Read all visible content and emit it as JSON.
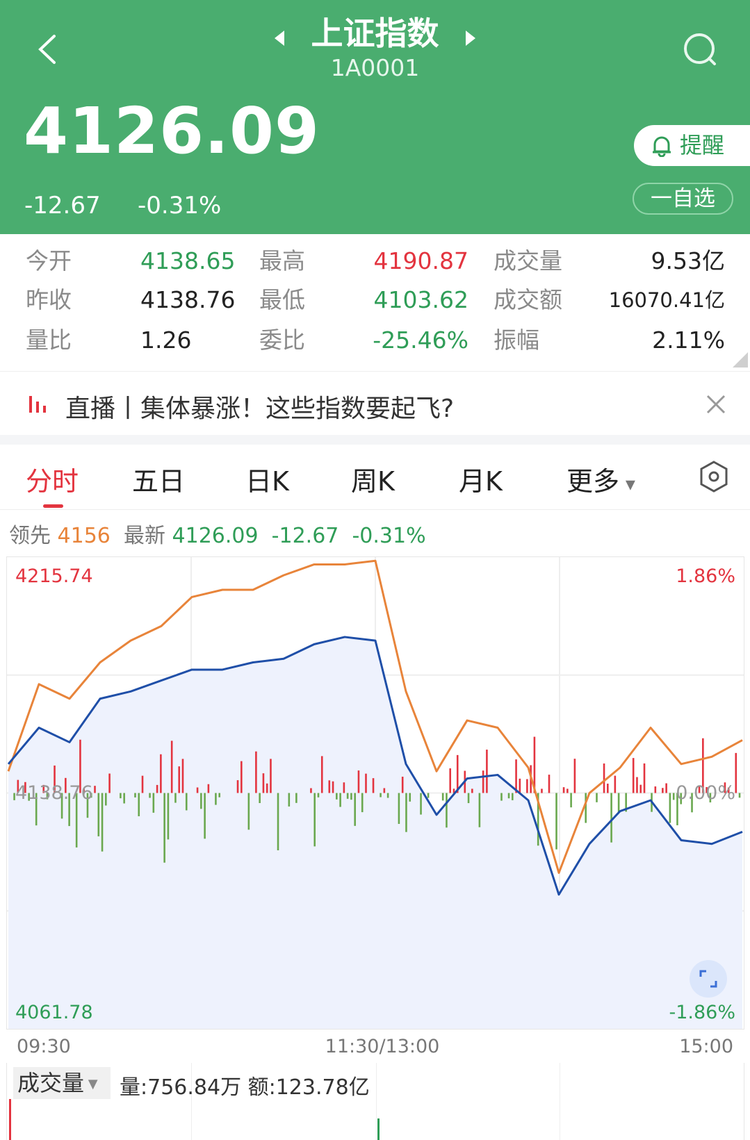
{
  "colors": {
    "header_bg": "#4aad6f",
    "up": "#e3343f",
    "down": "#2f9d57",
    "leading_line": "#e8843a",
    "price_line": "#1f4fa8"
  },
  "header": {
    "back_icon": "chevron-left-icon",
    "title": "上证指数",
    "code": "1A0001",
    "search_icon": "search-icon",
    "price": "4126.09",
    "change": "-12.67",
    "change_pct": "-0.31%",
    "alert_label": "提醒",
    "watchlist_label": "一自选"
  },
  "stats": [
    [
      {
        "label": "今开",
        "value": "4138.65",
        "color": "down"
      },
      {
        "label": "最高",
        "value": "4190.87",
        "color": "up"
      },
      {
        "label": "成交量",
        "value": "9.53亿",
        "color": "plain"
      }
    ],
    [
      {
        "label": "昨收",
        "value": "4138.76",
        "color": "plain"
      },
      {
        "label": "最低",
        "value": "4103.62",
        "color": "down"
      },
      {
        "label": "成交额",
        "value": "16070.41亿",
        "color": "plain"
      }
    ],
    [
      {
        "label": "量比",
        "value": "1.26",
        "color": "plain"
      },
      {
        "label": "委比",
        "value": "-25.46%",
        "color": "down"
      },
      {
        "label": "振幅",
        "value": "2.11%",
        "color": "plain"
      }
    ]
  ],
  "banner": {
    "text": "直播丨集体暴涨！这些指数要起飞?"
  },
  "tabs": [
    {
      "label": "分时",
      "active": true
    },
    {
      "label": "五日"
    },
    {
      "label": "日K"
    },
    {
      "label": "周K"
    },
    {
      "label": "月K"
    },
    {
      "label": "更多"
    }
  ],
  "info": {
    "lead_label": "领先",
    "lead_value": "4156",
    "latest_label": "最新",
    "latest_value": "4126.09",
    "change": "-12.67",
    "change_pct": "-0.31%"
  },
  "chart_data": {
    "type": "line",
    "y_max": "4215.74",
    "y_mid": "4138.76",
    "y_min": "4061.78",
    "pct_max": "1.86%",
    "pct_mid": "0.00%",
    "pct_min": "-1.86%",
    "ylim": [
      4061.78,
      4215.74
    ],
    "x_ticks": [
      "09:30",
      "11:30/13:00",
      "15:00"
    ],
    "times": [
      "09:30",
      "09:40",
      "09:50",
      "10:00",
      "10:10",
      "10:20",
      "10:30",
      "10:40",
      "10:50",
      "11:00",
      "11:10",
      "11:20",
      "11:30",
      "13:10",
      "13:20",
      "13:30",
      "13:40",
      "13:50",
      "14:00",
      "14:10",
      "14:20",
      "14:30",
      "14:40",
      "14:50",
      "15:00"
    ],
    "series": [
      {
        "key": "leading",
        "values": [
          4145.85,
          4174.28,
          4169.54,
          4181.39,
          4188.5,
          4193.23,
          4202.71,
          4205.08,
          4205.08,
          4209.82,
          4213.37,
          4213.37,
          4214.56,
          4171.91,
          4145.85,
          4162.44,
          4160.07,
          4147.04,
          4112.69,
          4138.74,
          4147.04,
          4160.07,
          4148.22,
          4150.59,
          4156
        ]
      },
      {
        "key": "price",
        "values": [
          4148.22,
          4160.07,
          4155.33,
          4169.54,
          4171.91,
          4175.47,
          4179.02,
          4179.02,
          4181.39,
          4182.57,
          4187.31,
          4189.68,
          4188.5,
          4148.22,
          4131.64,
          4143.49,
          4144.67,
          4136.38,
          4105.6,
          4122.16,
          4132.82,
          4136.38,
          4123.35,
          4122.16,
          4126.09
        ]
      }
    ],
    "grid": true
  },
  "volume": {
    "selector": "成交量",
    "summary": "量:756.84万 额:123.78亿"
  }
}
